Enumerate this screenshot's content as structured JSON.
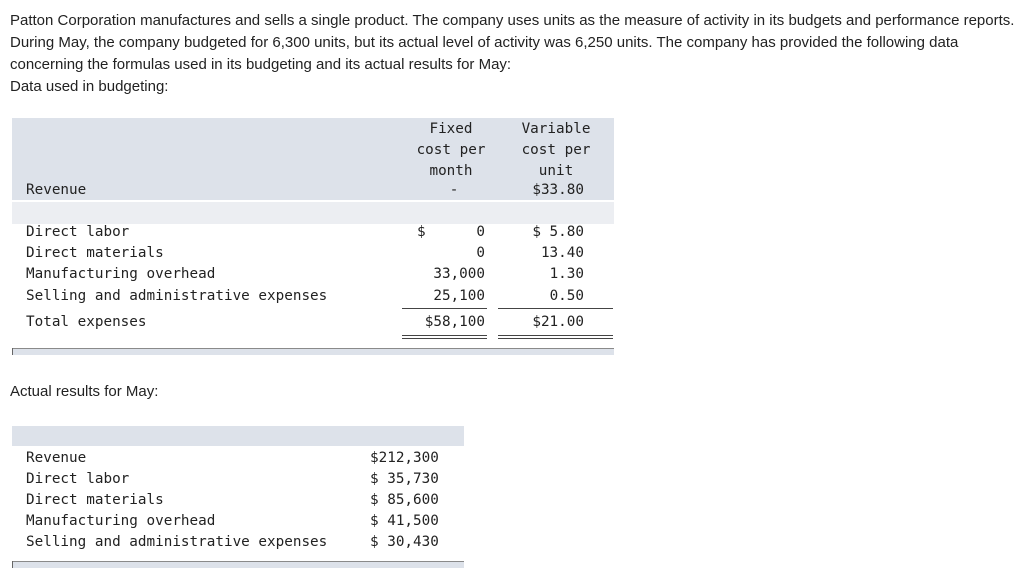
{
  "intro": {
    "paragraph": "Patton Corporation manufactures and sells a single product. The company uses units as the measure of activity in its budgets and performance reports. During May, the company budgeted for 6,300 units, but its actual level of activity was 6,250 units. The company has provided the following data concerning the formulas used in its budgeting and its actual results for May:",
    "budget_heading": "Data used in budgeting:"
  },
  "budget": {
    "headers": {
      "fixed": [
        "Fixed",
        "cost per",
        "month"
      ],
      "variable": [
        "Variable",
        "cost per",
        "unit"
      ]
    },
    "revenue": {
      "label": "Revenue",
      "fixed": "-",
      "variable": "$33.80"
    },
    "rows": [
      {
        "label": "Direct labor",
        "fixed_prefix": "$",
        "fixed": "0",
        "variable": "$ 5.80"
      },
      {
        "label": "Direct materials",
        "fixed_prefix": "",
        "fixed": "0",
        "variable": "13.40"
      },
      {
        "label": "Manufacturing overhead",
        "fixed_prefix": "",
        "fixed": "33,000",
        "variable": "1.30"
      },
      {
        "label": "Selling and administrative expenses",
        "fixed_prefix": "",
        "fixed": "25,100",
        "variable": "0.50"
      }
    ],
    "total": {
      "label": "Total expenses",
      "fixed": "$58,100",
      "variable": "$21.00"
    }
  },
  "actual": {
    "heading": "Actual results for May:",
    "rows": [
      {
        "label": "Revenue",
        "value": "$212,300"
      },
      {
        "label": "Direct labor",
        "value": "$ 35,730"
      },
      {
        "label": "Direct materials",
        "value": "$ 85,600"
      },
      {
        "label": "Manufacturing overhead",
        "value": "$ 41,500"
      },
      {
        "label": "Selling and administrative expenses",
        "value": "$ 30,430"
      }
    ]
  }
}
